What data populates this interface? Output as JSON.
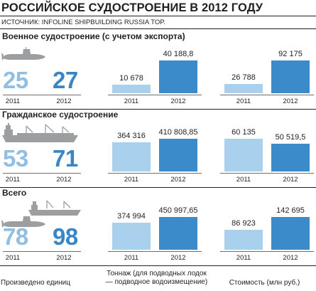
{
  "title": "РОССИЙСКОЕ СУДОСТРОЕНИЕ В 2012 ГОДУ",
  "source": "ИСТОЧНИК: INFOLINE SHIPBUILDING RUSSIA TOP.",
  "years": [
    "2011",
    "2012"
  ],
  "colors": {
    "y2011": "#a9d0ec",
    "y2012": "#3b8ac9",
    "text": "#231f20"
  },
  "footer": {
    "units": "Произведено единиц",
    "tonnage": "Тоннаж (для подводных лодок — подводное водоизмещение)",
    "cost": "Стоимость (млн руб.)"
  },
  "sections": [
    {
      "title": "Военное судостроение (с учетом экспорта)",
      "icon": "submarine-icon",
      "units": [
        "25",
        "27"
      ],
      "tonnage": [
        "10 678",
        "40 188,8"
      ],
      "cost": [
        "26 788",
        "92 175"
      ]
    },
    {
      "title": "Гражданское судостроение",
      "icon": "cargo-ship-icon",
      "units": [
        "53",
        "71"
      ],
      "tonnage": [
        "364 316",
        "410 808,85"
      ],
      "cost": [
        "60 135",
        "50 519,5"
      ]
    },
    {
      "title": "Всего",
      "icon": "ship-and-submarine-icon",
      "units": [
        "78",
        "98"
      ],
      "tonnage": [
        "374 994",
        "450 997,65"
      ],
      "cost": [
        "86 923",
        "142 695"
      ]
    }
  ],
  "chart_data": {
    "type": "bar",
    "title": "РОССИЙСКОЕ СУДОСТРОЕНИЕ В 2012 ГОДУ",
    "categories": [
      "2011",
      "2012"
    ],
    "panels": [
      {
        "section": "Военное судостроение (с учетом экспорта)",
        "units": [
          25,
          27
        ],
        "tonnage": [
          10678,
          40188.8
        ],
        "cost": [
          26788,
          92175
        ]
      },
      {
        "section": "Гражданское судостроение",
        "units": [
          53,
          71
        ],
        "tonnage": [
          364316,
          410808.85
        ],
        "cost": [
          60135,
          50519.5
        ]
      },
      {
        "section": "Всего",
        "units": [
          78,
          98
        ],
        "tonnage": [
          374994,
          450997.65
        ],
        "cost": [
          86923,
          142695
        ]
      }
    ]
  }
}
